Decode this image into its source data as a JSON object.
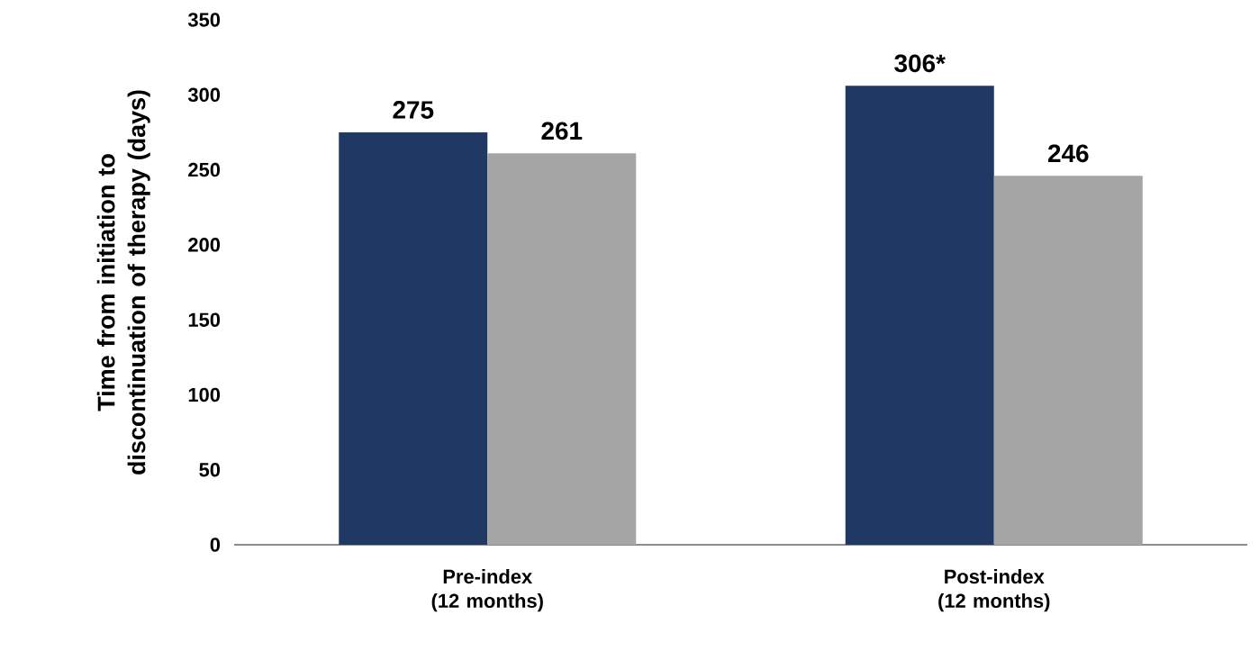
{
  "chart_data": {
    "type": "bar",
    "ylabel": "Time from initiation to discontinuation of therapy (days)",
    "categories": [
      "Pre-index (12 months)",
      "Post-index (12 months)"
    ],
    "series": [
      {
        "color": "#203864",
        "values": [
          275,
          306
        ],
        "value_labels": [
          "275",
          "306*"
        ]
      },
      {
        "color": "#a5a5a5",
        "values": [
          261,
          246
        ],
        "value_labels": [
          "261",
          "246"
        ]
      }
    ],
    "ylim": [
      0,
      350
    ],
    "yticks": [
      0,
      50,
      100,
      150,
      200,
      250,
      300,
      350
    ],
    "grid": false
  }
}
